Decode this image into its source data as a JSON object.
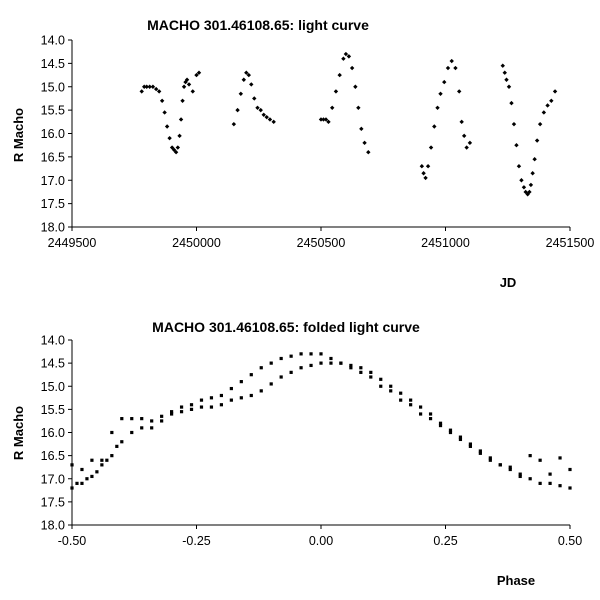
{
  "colors": {
    "points": "#000000",
    "axes": "#000000",
    "background": "#ffffff"
  },
  "chart_data": [
    {
      "id": "light-curve",
      "type": "scatter",
      "title": "MACHO 301.46108.65: light curve",
      "xlabel": "JD",
      "ylabel": "R Macho",
      "xlim": [
        2449500,
        2451500
      ],
      "ylim": [
        18.0,
        14.0
      ],
      "y_inverted": true,
      "xticks": [
        2449500,
        2450000,
        2450500,
        2451000,
        2451500
      ],
      "xtick_labels": [
        "2449500",
        "2450000",
        "2450500",
        "2451000",
        "2451500"
      ],
      "yticks": [
        14.0,
        14.5,
        15.0,
        15.5,
        16.0,
        16.5,
        17.0,
        17.5,
        18.0
      ],
      "ytick_labels": [
        "14.0",
        "14.5",
        "15.0",
        "15.5",
        "16.0",
        "16.5",
        "17.0",
        "17.5",
        "18.0"
      ],
      "grid": false,
      "legend": "none",
      "series": [
        {
          "x": [
            2449780,
            2449790,
            2449800,
            2449812,
            2449825,
            2449838,
            2449850,
            2449862,
            2449872,
            2449882,
            2449892,
            2449902,
            2449910,
            2449918,
            2449925,
            2449932,
            2449938,
            2449944,
            2449950,
            2449956,
            2449962,
            2449970,
            2449985,
            2450000,
            2450010,
            2450150,
            2450165,
            2450178,
            2450190,
            2450200,
            2450210,
            2450220,
            2450232,
            2450245,
            2450258,
            2450270,
            2450282,
            2450295,
            2450310,
            2450500,
            2450510,
            2450520,
            2450530,
            2450545,
            2450560,
            2450575,
            2450590,
            2450600,
            2450612,
            2450625,
            2450638,
            2450650,
            2450662,
            2450675,
            2450690,
            2450905,
            2450912,
            2450920,
            2450930,
            2450942,
            2450955,
            2450968,
            2450980,
            2450995,
            2451010,
            2451025,
            2451040,
            2451055,
            2451065,
            2451075,
            2451085,
            2451098,
            2451230,
            2451238,
            2451245,
            2451255,
            2451265,
            2451275,
            2451285,
            2451295,
            2451305,
            2451315,
            2451322,
            2451330,
            2451337,
            2451343,
            2451350,
            2451358,
            2451368,
            2451380,
            2451395,
            2451410,
            2451425,
            2451440
          ],
          "y": [
            15.1,
            15.0,
            15.0,
            15.0,
            15.0,
            15.05,
            15.1,
            15.3,
            15.55,
            15.85,
            16.1,
            16.3,
            16.35,
            16.4,
            16.3,
            16.05,
            15.7,
            15.3,
            15.0,
            14.9,
            14.85,
            14.95,
            15.1,
            14.75,
            14.7,
            15.8,
            15.5,
            15.15,
            14.85,
            14.7,
            14.75,
            14.95,
            15.25,
            15.45,
            15.5,
            15.6,
            15.65,
            15.7,
            15.75,
            15.7,
            15.7,
            15.7,
            15.75,
            15.45,
            15.1,
            14.75,
            14.4,
            14.3,
            14.35,
            14.6,
            15.0,
            15.45,
            15.9,
            16.2,
            16.4,
            16.7,
            16.85,
            16.95,
            16.7,
            16.3,
            15.85,
            15.45,
            15.15,
            14.9,
            14.6,
            14.45,
            14.6,
            15.1,
            15.75,
            16.05,
            16.3,
            16.2,
            14.55,
            14.7,
            14.85,
            15.0,
            15.35,
            15.8,
            16.25,
            16.7,
            17.0,
            17.15,
            17.25,
            17.3,
            17.25,
            17.1,
            16.85,
            16.55,
            16.15,
            15.8,
            15.55,
            15.4,
            15.3,
            15.1
          ]
        }
      ]
    },
    {
      "id": "folded-light-curve",
      "type": "scatter",
      "title": "MACHO 301.46108.65: folded light curve",
      "xlabel": "Phase",
      "ylabel": "R Macho",
      "xlim": [
        -0.5,
        0.5
      ],
      "ylim": [
        18.0,
        14.0
      ],
      "y_inverted": true,
      "xticks": [
        -0.5,
        -0.25,
        0.0,
        0.25,
        0.5
      ],
      "xtick_labels": [
        "-0.50",
        "-0.25",
        "0.00",
        "0.25",
        "0.50"
      ],
      "yticks": [
        14.0,
        14.5,
        15.0,
        15.5,
        16.0,
        16.5,
        17.0,
        17.5,
        18.0
      ],
      "ytick_labels": [
        "14.0",
        "14.5",
        "15.0",
        "15.5",
        "16.0",
        "16.5",
        "17.0",
        "17.5",
        "18.0"
      ],
      "grid": false,
      "legend": "none",
      "series": [
        {
          "x": [
            -0.5,
            -0.49,
            -0.48,
            -0.47,
            -0.46,
            -0.45,
            -0.44,
            -0.43,
            -0.42,
            -0.41,
            -0.4,
            -0.38,
            -0.36,
            -0.34,
            -0.32,
            -0.3,
            -0.28,
            -0.26,
            -0.24,
            -0.22,
            -0.2,
            -0.18,
            -0.16,
            -0.14,
            -0.12,
            -0.1,
            -0.08,
            -0.06,
            -0.04,
            -0.02,
            0.0,
            0.02,
            0.04,
            0.06,
            0.08,
            0.1,
            0.12,
            0.14,
            0.16,
            0.18,
            0.2,
            0.22,
            0.24,
            0.26,
            0.28,
            0.3,
            0.32,
            0.34,
            0.36,
            0.38,
            0.4,
            0.42,
            0.44,
            0.46,
            0.48,
            0.5,
            -0.5,
            -0.48,
            -0.46,
            -0.44,
            -0.42,
            -0.4,
            -0.38,
            -0.36,
            -0.34,
            -0.32,
            -0.3,
            -0.28,
            -0.26,
            -0.24,
            -0.22,
            -0.2,
            -0.18,
            -0.16,
            -0.14,
            -0.12,
            -0.1,
            -0.08,
            -0.06,
            -0.04,
            -0.02,
            0.0,
            0.02,
            0.04,
            0.06,
            0.08,
            0.1,
            0.12,
            0.14,
            0.16,
            0.18,
            0.2,
            0.22,
            0.24,
            0.26,
            0.28,
            0.3,
            0.32,
            0.34,
            0.36,
            0.38,
            0.4,
            0.42,
            0.44,
            0.46,
            0.48,
            0.5
          ],
          "y": [
            17.2,
            17.1,
            17.1,
            17.0,
            16.95,
            16.85,
            16.7,
            16.6,
            16.5,
            16.3,
            16.2,
            16.0,
            15.9,
            15.75,
            15.65,
            15.55,
            15.45,
            15.4,
            15.3,
            15.25,
            15.2,
            15.05,
            14.9,
            14.75,
            14.6,
            14.5,
            14.4,
            14.35,
            14.3,
            14.3,
            14.3,
            14.4,
            14.5,
            14.55,
            14.6,
            14.7,
            14.85,
            15.0,
            15.15,
            15.3,
            15.45,
            15.6,
            15.8,
            15.95,
            16.1,
            16.25,
            16.4,
            16.55,
            16.7,
            16.8,
            16.95,
            17.0,
            17.1,
            17.1,
            17.15,
            17.2,
            16.7,
            16.8,
            16.6,
            16.6,
            16.0,
            15.7,
            15.7,
            15.7,
            15.9,
            15.75,
            15.6,
            15.55,
            15.5,
            15.45,
            15.45,
            15.4,
            15.3,
            15.25,
            15.2,
            15.1,
            14.95,
            14.8,
            14.7,
            14.6,
            14.55,
            14.5,
            14.5,
            14.5,
            14.6,
            14.7,
            14.8,
            15.0,
            15.1,
            15.3,
            15.4,
            15.6,
            15.7,
            15.85,
            16.0,
            16.15,
            16.3,
            16.45,
            16.6,
            16.7,
            16.75,
            16.9,
            16.5,
            16.6,
            16.9,
            16.55,
            16.8
          ]
        }
      ]
    }
  ]
}
